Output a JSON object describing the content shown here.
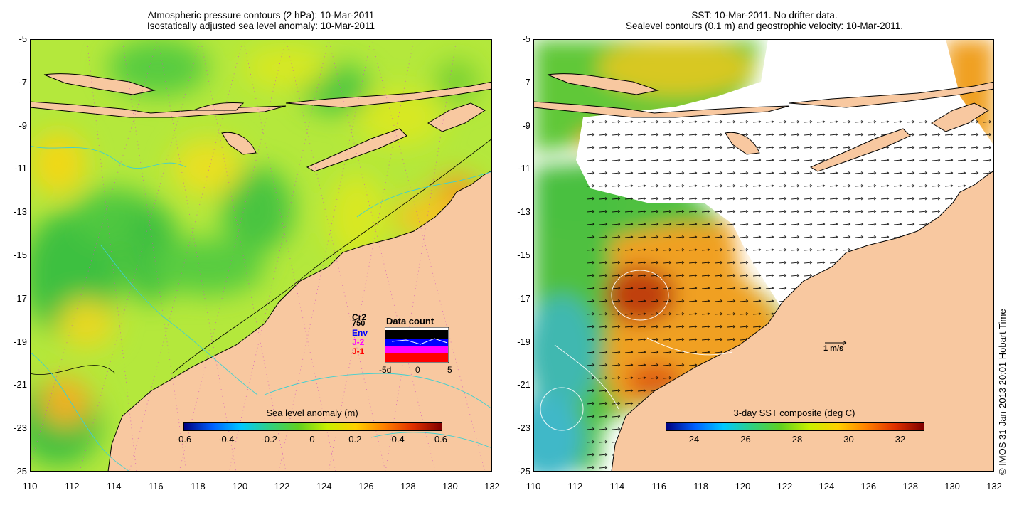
{
  "left_panel": {
    "title_line1": "Atmospheric pressure contours (2 hPa): 10-Mar-2011",
    "title_line2": "Isostatically adjusted sea level anomaly: 10-Mar-2011",
    "colorbar": {
      "label": "Sea level anomaly (m)",
      "ticks": [
        "-0.6",
        "-0.4",
        "-0.2",
        "0",
        "0.2",
        "0.4",
        "0.6"
      ],
      "colors": [
        "#000080",
        "#0060ff",
        "#00c8ff",
        "#30d080",
        "#60d020",
        "#c8f000",
        "#ffd000",
        "#ff8000",
        "#e03000",
        "#800000"
      ]
    },
    "inset": {
      "title": "Data count",
      "legend": [
        {
          "label": "Cr2",
          "color": "#000000"
        },
        {
          "label": "Env",
          "color": "#0000ff"
        },
        {
          "label": "J-2",
          "color": "#ff00ff"
        },
        {
          "label": "J-1",
          "color": "#ff0000"
        }
      ],
      "count": "750",
      "x_ticks": [
        "-5d",
        "0",
        "5"
      ]
    }
  },
  "right_panel": {
    "title_line1": "SST: 10-Mar-2011. No drifter data.",
    "title_line2": "Sealevel contours (0.1 m) and geostrophic velocity: 10-Mar-2011.",
    "colorbar": {
      "label": "3-day SST composite (deg C)",
      "ticks": [
        "24",
        "26",
        "28",
        "30",
        "32"
      ],
      "colors": [
        "#000080",
        "#0060ff",
        "#00c8ff",
        "#30d080",
        "#60d020",
        "#c8f000",
        "#ffd000",
        "#ff8000",
        "#e03000",
        "#800000"
      ]
    },
    "velocity_scale": "1 m/s"
  },
  "axes": {
    "y_ticks": [
      "-5",
      "-7",
      "-9",
      "-11",
      "-13",
      "-15",
      "-17",
      "-19",
      "-21",
      "-23",
      "-25"
    ],
    "x_ticks": [
      "110",
      "112",
      "114",
      "116",
      "118",
      "120",
      "122",
      "124",
      "126",
      "128",
      "130",
      "132"
    ]
  },
  "credit": "© IMOS 31-Jan-2013 20:01 Hobart Time",
  "colors": {
    "land": "#f8c8a0",
    "ocean_mid": "#a8e038",
    "ocean_green": "#40c040",
    "ocean_yellow": "#f0e000",
    "ocean_orange": "#f0a020",
    "no_data": "#ffffff",
    "coast_outline": "#000000"
  }
}
